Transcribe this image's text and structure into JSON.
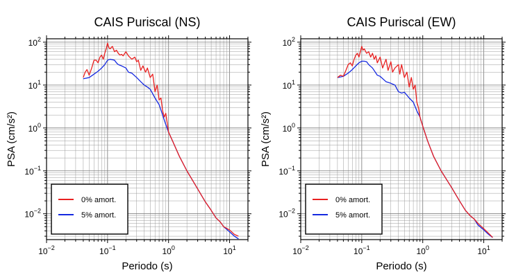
{
  "chart_data": [
    {
      "type": "line",
      "title": "CAIS Puriscal (NS)",
      "xlabel": "Periodo (s)",
      "ylabel": "PSA (cm/s²)",
      "xscale": "log",
      "yscale": "log",
      "xlim": [
        0.01,
        20
      ],
      "ylim": [
        0.0025,
        120
      ],
      "grid": true,
      "legend_position": "bottom-left",
      "x_tick_labels": [
        {
          "base": "10",
          "exp": "−2"
        },
        {
          "base": "10",
          "exp": "−1"
        },
        {
          "base": "10",
          "exp": "0"
        },
        {
          "base": "10",
          "exp": "1"
        }
      ],
      "y_tick_labels": [
        {
          "base": "10",
          "exp": "−2"
        },
        {
          "base": "10",
          "exp": "−1"
        },
        {
          "base": "10",
          "exp": "0"
        },
        {
          "base": "10",
          "exp": "1"
        },
        {
          "base": "10",
          "exp": "2"
        }
      ],
      "series": [
        {
          "name": "0% amort.",
          "color": "#e82020",
          "points": [
            [
              0.04,
              15
            ],
            [
              0.043,
              20
            ],
            [
              0.046,
              23
            ],
            [
              0.05,
              17
            ],
            [
              0.055,
              25
            ],
            [
              0.06,
              38
            ],
            [
              0.065,
              38
            ],
            [
              0.07,
              33
            ],
            [
              0.075,
              45
            ],
            [
              0.08,
              50
            ],
            [
              0.085,
              40
            ],
            [
              0.09,
              55
            ],
            [
              0.095,
              70
            ],
            [
              0.1,
              95
            ],
            [
              0.105,
              75
            ],
            [
              0.11,
              70
            ],
            [
              0.12,
              80
            ],
            [
              0.13,
              60
            ],
            [
              0.14,
              65
            ],
            [
              0.15,
              55
            ],
            [
              0.16,
              50
            ],
            [
              0.17,
              52
            ],
            [
              0.18,
              48
            ],
            [
              0.2,
              60
            ],
            [
              0.22,
              48
            ],
            [
              0.25,
              40
            ],
            [
              0.28,
              45
            ],
            [
              0.3,
              35
            ],
            [
              0.32,
              38
            ],
            [
              0.35,
              22
            ],
            [
              0.38,
              28
            ],
            [
              0.42,
              20
            ],
            [
              0.45,
              25
            ],
            [
              0.5,
              15
            ],
            [
              0.55,
              18
            ],
            [
              0.6,
              7
            ],
            [
              0.65,
              10
            ],
            [
              0.7,
              4.5
            ],
            [
              0.75,
              5
            ],
            [
              0.8,
              2.5
            ],
            [
              0.85,
              1.8
            ],
            [
              0.9,
              2.2
            ],
            [
              1.0,
              0.8
            ],
            [
              1.2,
              0.45
            ],
            [
              1.5,
              0.22
            ],
            [
              2.0,
              0.1
            ],
            [
              3.0,
              0.038
            ],
            [
              4.0,
              0.019
            ],
            [
              5.0,
              0.012
            ],
            [
              6.0,
              0.008
            ],
            [
              7.0,
              0.0065
            ],
            [
              8.0,
              0.005
            ],
            [
              10.0,
              0.0042
            ],
            [
              12.0,
              0.0033
            ],
            [
              14.0,
              0.003
            ]
          ]
        },
        {
          "name": "5% amort.",
          "color": "#1428e0",
          "points": [
            [
              0.04,
              14
            ],
            [
              0.05,
              15
            ],
            [
              0.06,
              18
            ],
            [
              0.07,
              21
            ],
            [
              0.08,
              25
            ],
            [
              0.09,
              30
            ],
            [
              0.1,
              38
            ],
            [
              0.11,
              40
            ],
            [
              0.12,
              39
            ],
            [
              0.13,
              38
            ],
            [
              0.14,
              33
            ],
            [
              0.15,
              30
            ],
            [
              0.17,
              28
            ],
            [
              0.2,
              25
            ],
            [
              0.22,
              20
            ],
            [
              0.25,
              19
            ],
            [
              0.3,
              15
            ],
            [
              0.35,
              12
            ],
            [
              0.4,
              10
            ],
            [
              0.45,
              9
            ],
            [
              0.5,
              8
            ],
            [
              0.6,
              5
            ],
            [
              0.7,
              3.5
            ],
            [
              0.8,
              2
            ],
            [
              0.9,
              1.2
            ],
            [
              1.0,
              0.8
            ],
            [
              1.2,
              0.45
            ],
            [
              1.5,
              0.22
            ],
            [
              2.0,
              0.1
            ],
            [
              3.0,
              0.038
            ],
            [
              4.0,
              0.019
            ],
            [
              5.0,
              0.012
            ],
            [
              6.0,
              0.008
            ],
            [
              7.0,
              0.0065
            ],
            [
              8.0,
              0.005
            ],
            [
              10.0,
              0.0038
            ],
            [
              12.0,
              0.003
            ],
            [
              14.0,
              0.0026
            ]
          ]
        }
      ]
    },
    {
      "type": "line",
      "title": "CAIS Puriscal (EW)",
      "xlabel": "Periodo (s)",
      "ylabel": "PSA (cm/s²)",
      "xscale": "log",
      "yscale": "log",
      "xlim": [
        0.01,
        20
      ],
      "ylim": [
        0.0025,
        120
      ],
      "grid": true,
      "legend_position": "bottom-left",
      "x_tick_labels": [
        {
          "base": "10",
          "exp": "−2"
        },
        {
          "base": "10",
          "exp": "−1"
        },
        {
          "base": "10",
          "exp": "0"
        },
        {
          "base": "10",
          "exp": "1"
        }
      ],
      "y_tick_labels": [
        {
          "base": "10",
          "exp": "−2"
        },
        {
          "base": "10",
          "exp": "−1"
        },
        {
          "base": "10",
          "exp": "0"
        },
        {
          "base": "10",
          "exp": "1"
        },
        {
          "base": "10",
          "exp": "2"
        }
      ],
      "series": [
        {
          "name": "0% amort.",
          "color": "#e82020",
          "points": [
            [
              0.04,
              15
            ],
            [
              0.045,
              17
            ],
            [
              0.05,
              16
            ],
            [
              0.055,
              22
            ],
            [
              0.06,
              30
            ],
            [
              0.065,
              33
            ],
            [
              0.07,
              28
            ],
            [
              0.075,
              40
            ],
            [
              0.08,
              50
            ],
            [
              0.085,
              55
            ],
            [
              0.09,
              45
            ],
            [
              0.1,
              80
            ],
            [
              0.105,
              65
            ],
            [
              0.11,
              70
            ],
            [
              0.12,
              55
            ],
            [
              0.13,
              60
            ],
            [
              0.14,
              45
            ],
            [
              0.15,
              55
            ],
            [
              0.16,
              40
            ],
            [
              0.17,
              48
            ],
            [
              0.18,
              33
            ],
            [
              0.2,
              45
            ],
            [
              0.22,
              25
            ],
            [
              0.25,
              40
            ],
            [
              0.27,
              22
            ],
            [
              0.3,
              35
            ],
            [
              0.32,
              20
            ],
            [
              0.35,
              25
            ],
            [
              0.4,
              30
            ],
            [
              0.42,
              18
            ],
            [
              0.45,
              30
            ],
            [
              0.5,
              15
            ],
            [
              0.55,
              20
            ],
            [
              0.6,
              9
            ],
            [
              0.65,
              15
            ],
            [
              0.7,
              8
            ],
            [
              0.75,
              10
            ],
            [
              0.8,
              4
            ],
            [
              0.85,
              3
            ],
            [
              0.9,
              1.8
            ],
            [
              1.0,
              1.1
            ],
            [
              1.2,
              0.5
            ],
            [
              1.5,
              0.22
            ],
            [
              2.0,
              0.1
            ],
            [
              3.0,
              0.04
            ],
            [
              4.0,
              0.02
            ],
            [
              5.0,
              0.012
            ],
            [
              6.0,
              0.009
            ],
            [
              7.0,
              0.0075
            ],
            [
              8.0,
              0.006
            ],
            [
              10.0,
              0.0045
            ],
            [
              12.0,
              0.0035
            ],
            [
              14.0,
              0.0028
            ]
          ]
        },
        {
          "name": "5% amort.",
          "color": "#1428e0",
          "points": [
            [
              0.04,
              15
            ],
            [
              0.05,
              16
            ],
            [
              0.06,
              19
            ],
            [
              0.07,
              23
            ],
            [
              0.08,
              28
            ],
            [
              0.09,
              33
            ],
            [
              0.1,
              36
            ],
            [
              0.11,
              36
            ],
            [
              0.12,
              35
            ],
            [
              0.13,
              30
            ],
            [
              0.15,
              25
            ],
            [
              0.18,
              17
            ],
            [
              0.2,
              16
            ],
            [
              0.25,
              12
            ],
            [
              0.3,
              11
            ],
            [
              0.35,
              10
            ],
            [
              0.4,
              7
            ],
            [
              0.45,
              6.5
            ],
            [
              0.5,
              6.8
            ],
            [
              0.6,
              5
            ],
            [
              0.7,
              4
            ],
            [
              0.8,
              2.5
            ],
            [
              0.9,
              1.8
            ],
            [
              1.0,
              1.1
            ],
            [
              1.2,
              0.5
            ],
            [
              1.5,
              0.22
            ],
            [
              2.0,
              0.1
            ],
            [
              3.0,
              0.04
            ],
            [
              4.0,
              0.02
            ],
            [
              5.0,
              0.012
            ],
            [
              6.0,
              0.009
            ],
            [
              7.0,
              0.0075
            ],
            [
              8.0,
              0.0055
            ],
            [
              10.0,
              0.0042
            ],
            [
              12.0,
              0.0033
            ],
            [
              14.0,
              0.0028
            ]
          ]
        }
      ]
    }
  ]
}
